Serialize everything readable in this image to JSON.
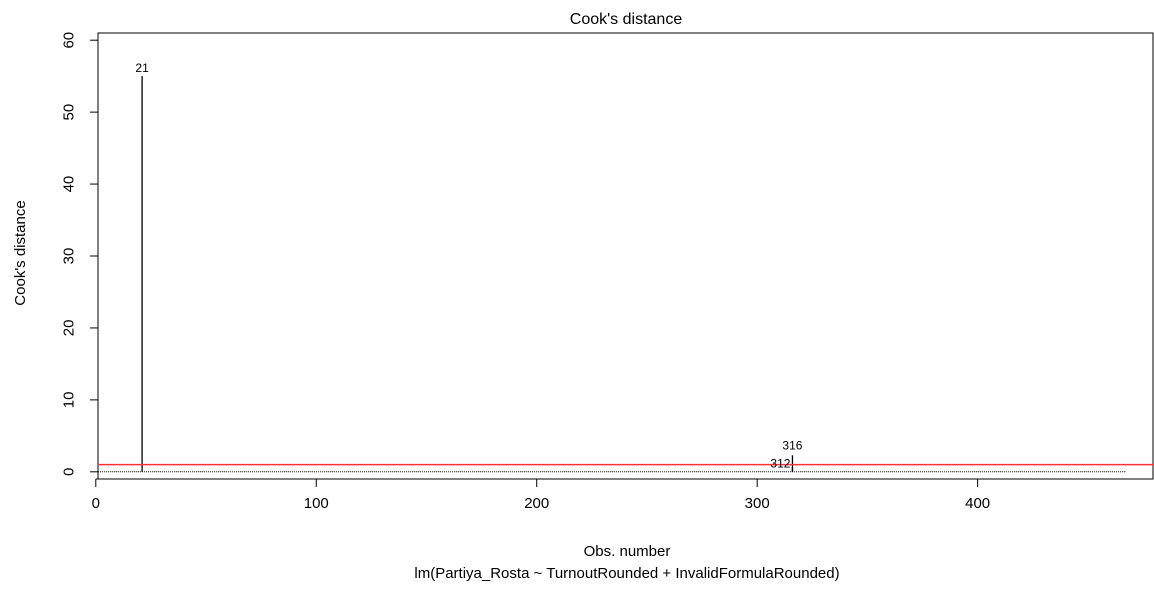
{
  "chart_data": {
    "type": "line",
    "title": "Cook's distance",
    "xlabel": "Obs. number",
    "ylabel": "Cook's distance",
    "subtitle": "lm(Partiya_Rosta ~ TurnoutRounded + InvalidFormulaRounded)",
    "xlim": [
      1,
      480
    ],
    "ylim": [
      -1,
      61
    ],
    "x_ticks": [
      0,
      100,
      200,
      300,
      400
    ],
    "y_ticks": [
      0,
      10,
      20,
      30,
      40,
      50,
      60
    ],
    "n_observations": 467,
    "grid": false,
    "legend": "none",
    "reference_line": {
      "y": 1,
      "color": "#ff0000"
    },
    "highlighted_points": [
      {
        "x": 21,
        "y": 55,
        "label": "21"
      },
      {
        "x": 316,
        "y": 2.3,
        "label": "316"
      },
      {
        "x": 316,
        "y": 0.6,
        "label": "312"
      }
    ],
    "baseline_value": 0.05,
    "colors": {
      "bars": "#000000",
      "reference": "#ff3333",
      "axis": "#000000"
    }
  }
}
